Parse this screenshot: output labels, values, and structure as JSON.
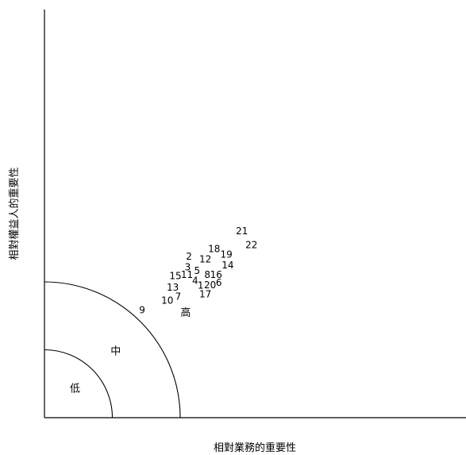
{
  "chart_data": {
    "type": "scatter",
    "xlabel": "相對業務的重要性",
    "ylabel": "相對權益人的重要性",
    "zones": [
      {
        "label": "低",
        "x": 4.5,
        "y": 4.2
      },
      {
        "label": "中",
        "x": 10.5,
        "y": 9.7
      },
      {
        "label": "高",
        "x": 20.8,
        "y": 15.4
      }
    ],
    "zone_radii": [
      10,
      20
    ],
    "xlim": [
      0,
      31
    ],
    "ylim": [
      0,
      30.5
    ],
    "points": [
      {
        "label": "1",
        "x": 23,
        "y": 19.4
      },
      {
        "label": "2",
        "x": 21.3,
        "y": 23.7
      },
      {
        "label": "3",
        "x": 21.1,
        "y": 22.1
      },
      {
        "label": "4",
        "x": 22.2,
        "y": 20.1
      },
      {
        "label": "5",
        "x": 22.5,
        "y": 21.6
      },
      {
        "label": "6",
        "x": 25.7,
        "y": 19.8
      },
      {
        "label": "7",
        "x": 19.7,
        "y": 17.8
      },
      {
        "label": "8",
        "x": 24,
        "y": 21
      },
      {
        "label": "9",
        "x": 14.4,
        "y": 15.8
      },
      {
        "label": "10",
        "x": 18.1,
        "y": 17.2
      },
      {
        "label": "11",
        "x": 21,
        "y": 21
      },
      {
        "label": "12",
        "x": 23.7,
        "y": 23.3
      },
      {
        "label": "13",
        "x": 18.9,
        "y": 19.1
      },
      {
        "label": "14",
        "x": 27,
        "y": 22.4
      },
      {
        "label": "15",
        "x": 19.3,
        "y": 20.8
      },
      {
        "label": "16",
        "x": 25.3,
        "y": 21
      },
      {
        "label": "17",
        "x": 23.7,
        "y": 18.1
      },
      {
        "label": "18",
        "x": 25,
        "y": 24.8
      },
      {
        "label": "19",
        "x": 26.8,
        "y": 24
      },
      {
        "label": "20",
        "x": 24.4,
        "y": 19.5
      },
      {
        "label": "21",
        "x": 29.1,
        "y": 27.4
      },
      {
        "label": "22",
        "x": 30.5,
        "y": 25.4
      }
    ]
  }
}
